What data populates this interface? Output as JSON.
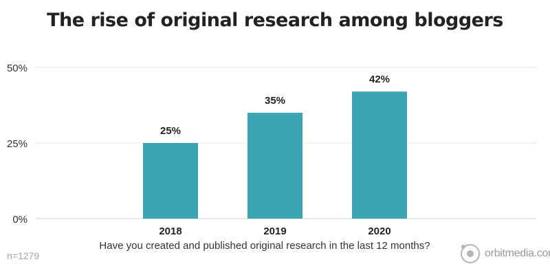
{
  "chart_data": {
    "type": "bar",
    "title": "The rise of original research among bloggers",
    "xlabel": "Have you created and published original research in the last 12 months?",
    "ylabel": "",
    "categories": [
      "2018",
      "2019",
      "2020"
    ],
    "values": [
      25,
      35,
      42
    ],
    "data_labels": [
      "25%",
      "35%",
      "42%"
    ],
    "ylim": [
      0,
      50
    ],
    "yticks": [
      0,
      25,
      50
    ],
    "ytick_labels": [
      "0%",
      "25%",
      "50%"
    ],
    "grid": true,
    "bar_color": "#3ba6b1",
    "note": "n=1279"
  },
  "brand": {
    "name": "orbitmedia.com",
    "icon": "orbit-logo-icon"
  }
}
